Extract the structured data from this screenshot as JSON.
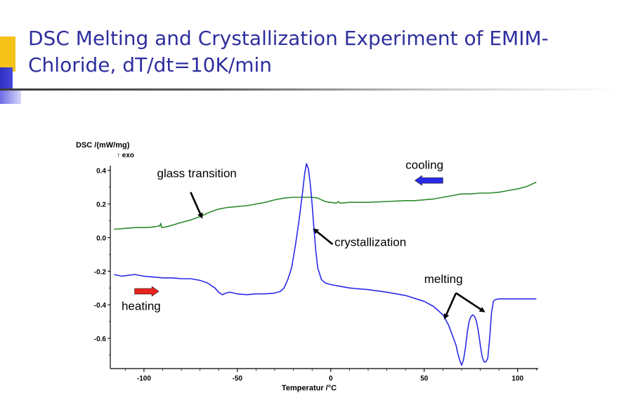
{
  "slide": {
    "title_line1": "DSC Melting and Crystallization Experiment of EMIM-",
    "title_line2": "Chloride, dT/dt=10K/min"
  },
  "colors": {
    "title": "#2e2e9e",
    "accent_yellow": "#f5c21a",
    "accent_blue": "#3a3acf",
    "cooling_curve": "#2e8b2e",
    "heating_curve": "#2a2ae8",
    "heating_arrow": "#e8231e",
    "cooling_arrow": "#2a2ae8"
  },
  "chart_data": {
    "type": "line",
    "ylabel_line1": "DSC /(mW/mg)",
    "ylabel_line2": "↑ exo",
    "xlabel": "Temperatur /°C",
    "xlim": [
      -118,
      111
    ],
    "ylim": [
      -0.78,
      0.47
    ],
    "xticks": [
      -100,
      -50,
      0,
      50,
      100
    ],
    "yticks": [
      0.4,
      0.2,
      0.0,
      -0.2,
      -0.4,
      -0.6
    ],
    "ytick_labels": [
      "0.4",
      "0.2",
      "0.0",
      "-0.2",
      "-0.4",
      "-0.6"
    ],
    "grid": false,
    "series": [
      {
        "id": "cooling",
        "color": "#2e8b2e",
        "x": [
          -116,
          -110,
          -104,
          -98,
          -94,
          -91.5,
          -91,
          -90.5,
          -90,
          -86,
          -80,
          -75,
          -70,
          -65,
          -60,
          -55,
          -50,
          -45,
          -40,
          -35,
          -30,
          -25,
          -20,
          -15,
          -10,
          -7,
          -5,
          -3,
          -1,
          0,
          3,
          4,
          5,
          10,
          20,
          30,
          40,
          45,
          50,
          55,
          60,
          65,
          70,
          75,
          80,
          85,
          90,
          95,
          100,
          105,
          110
        ],
        "y": [
          0.05,
          0.055,
          0.06,
          0.06,
          0.065,
          0.07,
          0.085,
          0.06,
          0.06,
          0.07,
          0.09,
          0.105,
          0.125,
          0.15,
          0.17,
          0.18,
          0.185,
          0.19,
          0.2,
          0.21,
          0.225,
          0.235,
          0.24,
          0.24,
          0.24,
          0.235,
          0.225,
          0.215,
          0.21,
          0.21,
          0.205,
          0.215,
          0.205,
          0.21,
          0.21,
          0.215,
          0.22,
          0.22,
          0.225,
          0.23,
          0.24,
          0.25,
          0.26,
          0.26,
          0.265,
          0.265,
          0.27,
          0.28,
          0.29,
          0.305,
          0.33
        ]
      },
      {
        "id": "heating",
        "color": "#2a2ae8",
        "x": [
          -116,
          -112,
          -105,
          -100,
          -95,
          -90,
          -85,
          -80,
          -75,
          -70,
          -66,
          -62,
          -60,
          -58,
          -56,
          -54,
          -52,
          -50,
          -45,
          -40,
          -35,
          -30,
          -27,
          -25,
          -23,
          -21,
          -19,
          -17,
          -15,
          -14,
          -13,
          -12,
          -11,
          -10,
          -9,
          -8,
          -7,
          -5,
          -3,
          0,
          5,
          10,
          20,
          30,
          40,
          50,
          55,
          60,
          63,
          65,
          67,
          68,
          69,
          70,
          71,
          72,
          73,
          74,
          75,
          76,
          77,
          78,
          79,
          80,
          81,
          82,
          83,
          84,
          85,
          86,
          87,
          88,
          90,
          95,
          100,
          105,
          110
        ],
        "y": [
          -0.22,
          -0.23,
          -0.22,
          -0.23,
          -0.235,
          -0.24,
          -0.24,
          -0.245,
          -0.245,
          -0.255,
          -0.27,
          -0.3,
          -0.325,
          -0.34,
          -0.33,
          -0.325,
          -0.33,
          -0.335,
          -0.34,
          -0.335,
          -0.335,
          -0.33,
          -0.32,
          -0.3,
          -0.25,
          -0.18,
          -0.05,
          0.1,
          0.28,
          0.38,
          0.44,
          0.41,
          0.32,
          0.2,
          0.05,
          -0.08,
          -0.18,
          -0.25,
          -0.27,
          -0.28,
          -0.29,
          -0.3,
          -0.31,
          -0.325,
          -0.345,
          -0.38,
          -0.41,
          -0.46,
          -0.52,
          -0.58,
          -0.64,
          -0.69,
          -0.73,
          -0.76,
          -0.73,
          -0.66,
          -0.57,
          -0.5,
          -0.47,
          -0.46,
          -0.47,
          -0.5,
          -0.56,
          -0.64,
          -0.71,
          -0.74,
          -0.74,
          -0.72,
          -0.6,
          -0.45,
          -0.38,
          -0.37,
          -0.365,
          -0.365,
          -0.365,
          -0.365,
          -0.365
        ]
      }
    ],
    "annotations": [
      {
        "id": "glass-transition",
        "text": "glass transition",
        "x": -93,
        "y": 0.36,
        "arrow_from": [
          -75,
          0.27
        ],
        "arrow_to": [
          -69,
          0.12
        ]
      },
      {
        "id": "crystallization",
        "text": "crystallization",
        "x": 2,
        "y": -0.05,
        "arrow_from": [
          1,
          -0.04
        ],
        "arrow_to": [
          -9,
          0.05
        ]
      },
      {
        "id": "melting",
        "text": "melting",
        "x": 50,
        "y": -0.27,
        "arrow_from": [
          67,
          -0.33
        ],
        "arrow_to": [
          61,
          -0.48
        ],
        "arrow2_to": [
          82,
          -0.44
        ]
      },
      {
        "id": "cooling",
        "text": "cooling",
        "x": 40,
        "y": 0.41
      },
      {
        "id": "heating",
        "text": "heating",
        "x": -112,
        "y": -0.43
      }
    ],
    "direction_arrows": [
      {
        "id": "heating-arrow",
        "color": "#e8231e",
        "direction": "right",
        "x": [
          -105,
          -92
        ],
        "y": -0.32
      },
      {
        "id": "cooling-arrow",
        "color": "#2a2ae8",
        "direction": "left",
        "x": [
          45,
          60
        ],
        "y": 0.34
      }
    ]
  }
}
